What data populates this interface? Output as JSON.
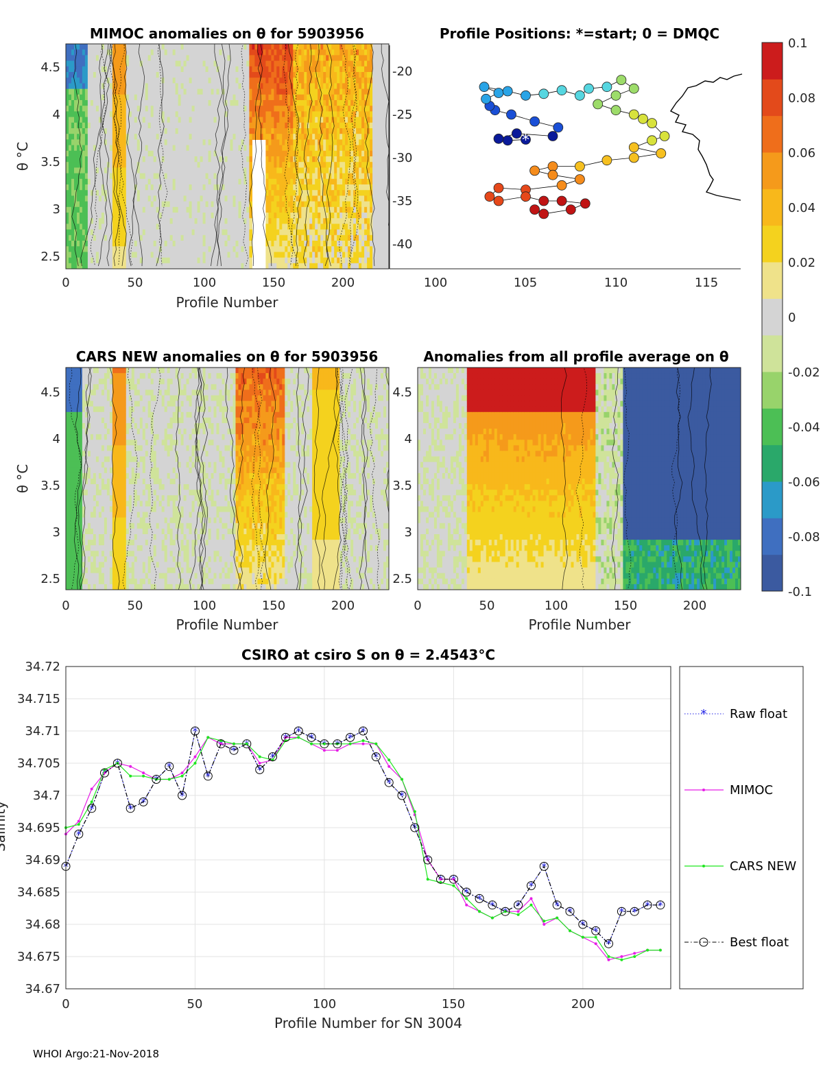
{
  "colors": {
    "float_raw": "#1f1fe6",
    "mimoc": "#e61ee6",
    "cars": "#1ee61e",
    "best": "#000000",
    "cmap": [
      "#3b5aa0",
      "#3f6fc0",
      "#2b9ac8",
      "#2aa86a",
      "#4cbf55",
      "#98d36b",
      "#cfe39a",
      "#d4d4d4",
      "#efe28a",
      "#f4d21e",
      "#f8b81b",
      "#f59a1b",
      "#ef6e1b",
      "#e34a1b",
      "#cc1c1c"
    ]
  },
  "panels": {
    "mimoc_heatmap": {
      "title": "MIMOC anomalies on θ  for 5903956",
      "xlabel": "Profile Number",
      "ylabel": "θ °C",
      "xticks": [
        "0",
        "50",
        "100",
        "150",
        "200"
      ],
      "yticks": [
        "4.5",
        "4",
        "3.5",
        "3",
        "2.5"
      ]
    },
    "positions_map": {
      "title": "Profile Positions: *=start; 0 = DMQC",
      "xticks": [
        "100",
        "105",
        "110",
        "115"
      ],
      "yticks": [
        "-20",
        "-25",
        "-30",
        "-35",
        "-40"
      ]
    },
    "cars_heatmap": {
      "title": "CARS NEW anomalies on θ for 5903956",
      "xlabel": "Profile Number",
      "ylabel": "θ °C",
      "xticks": [
        "0",
        "50",
        "100",
        "150",
        "200"
      ],
      "yticks": [
        "4.5",
        "4",
        "3.5",
        "3",
        "2.5"
      ]
    },
    "all_avg_heatmap": {
      "title": "Anomalies from all profile average on θ",
      "xlabel": "Profile Number",
      "xticks": [
        "0",
        "50",
        "100",
        "150",
        "200"
      ],
      "yticks": [
        "4.5",
        "4",
        "3.5",
        "3",
        "2.5"
      ]
    },
    "colorbar": {
      "ticks": [
        "0.1",
        "0.08",
        "0.06",
        "0.04",
        "0.02",
        "0",
        "-0.02",
        "-0.04",
        "-0.06",
        "-0.08",
        "-0.1"
      ]
    }
  },
  "chart_data": {
    "type": "line",
    "title": "CSIRO at csiro S on θ = 2.4543°C",
    "xlabel": "Profile Number for SN 3004",
    "ylabel": "Salinity",
    "xlim": [
      0,
      234
    ],
    "ylim": [
      34.67,
      34.72
    ],
    "xticks": [
      "0",
      "50",
      "100",
      "150",
      "200"
    ],
    "yticks": [
      "34.72",
      "34.715",
      "34.71",
      "34.705",
      "34.7",
      "34.695",
      "34.69",
      "34.685",
      "34.68",
      "34.675",
      "34.67"
    ],
    "legend": [
      "Raw float",
      "MIMOC",
      "CARS NEW",
      "Best float"
    ],
    "legend_position": "right-outside",
    "grid": true,
    "x": [
      0,
      5,
      10,
      15,
      20,
      25,
      30,
      35,
      40,
      45,
      50,
      55,
      60,
      65,
      70,
      75,
      80,
      85,
      90,
      95,
      100,
      105,
      110,
      115,
      120,
      125,
      130,
      135,
      140,
      145,
      150,
      155,
      160,
      165,
      170,
      175,
      180,
      185,
      190,
      195,
      200,
      205,
      210,
      215,
      220,
      225,
      230
    ],
    "series": [
      {
        "name": "Raw float",
        "values": [
          34.689,
          34.694,
          34.698,
          34.7035,
          34.705,
          34.698,
          34.699,
          34.7025,
          34.7045,
          34.7,
          34.71,
          34.703,
          34.708,
          34.707,
          34.708,
          34.704,
          34.706,
          34.709,
          34.71,
          34.709,
          34.708,
          34.708,
          34.709,
          34.71,
          34.706,
          34.702,
          34.7,
          34.695,
          34.69,
          34.687,
          34.687,
          34.685,
          34.684,
          34.683,
          34.682,
          34.683,
          34.686,
          34.689,
          34.683,
          34.682,
          34.68,
          34.679,
          34.677,
          34.682,
          34.682,
          34.683,
          34.683
        ]
      },
      {
        "name": "MIMOC",
        "values": [
          34.694,
          34.696,
          34.701,
          34.7035,
          34.705,
          34.7045,
          34.7035,
          34.7025,
          34.7025,
          34.7035,
          34.706,
          34.709,
          34.708,
          34.708,
          34.708,
          34.705,
          34.7055,
          34.709,
          34.709,
          34.708,
          34.707,
          34.707,
          34.708,
          34.708,
          34.708,
          34.7045,
          34.7025,
          34.697,
          34.69,
          34.687,
          34.687,
          34.683,
          34.682,
          34.681,
          34.682,
          34.682,
          34.684,
          34.68,
          34.681,
          34.679,
          34.678,
          34.677,
          34.6745,
          34.675,
          34.6755,
          34.676,
          34.676
        ]
      },
      {
        "name": "CARS NEW",
        "values": [
          34.695,
          34.6955,
          34.699,
          34.704,
          34.705,
          34.703,
          34.703,
          34.7025,
          34.7025,
          34.703,
          34.705,
          34.709,
          34.7085,
          34.708,
          34.708,
          34.706,
          34.7055,
          34.7085,
          34.709,
          34.708,
          34.708,
          34.708,
          34.708,
          34.7085,
          34.708,
          34.7055,
          34.7025,
          34.6975,
          34.687,
          34.6865,
          34.686,
          34.684,
          34.682,
          34.681,
          34.682,
          34.6815,
          34.683,
          34.6805,
          34.681,
          34.679,
          34.678,
          34.678,
          34.675,
          34.6745,
          34.675,
          34.676,
          34.676
        ]
      },
      {
        "name": "Best float",
        "values": [
          34.689,
          34.694,
          34.698,
          34.7035,
          34.705,
          34.698,
          34.699,
          34.7025,
          34.7045,
          34.7,
          34.71,
          34.703,
          34.708,
          34.707,
          34.708,
          34.704,
          34.706,
          34.709,
          34.71,
          34.709,
          34.708,
          34.708,
          34.709,
          34.71,
          34.706,
          34.702,
          34.7,
          34.695,
          34.69,
          34.687,
          34.687,
          34.685,
          34.684,
          34.683,
          34.682,
          34.683,
          34.686,
          34.689,
          34.683,
          34.682,
          34.68,
          34.679,
          34.677,
          34.682,
          34.682,
          34.683,
          34.683
        ]
      }
    ]
  },
  "footer": "WHOI Argo:21-Nov-2018"
}
